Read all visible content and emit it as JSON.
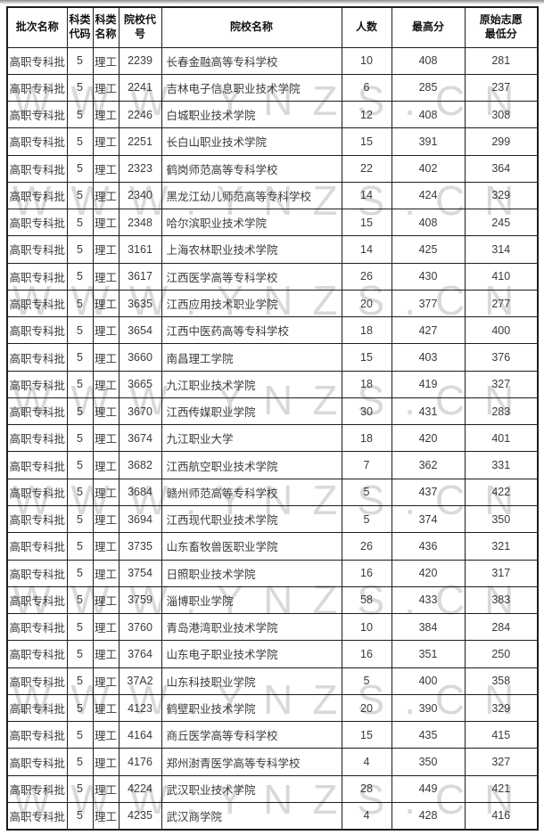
{
  "watermark": {
    "text": "WWW.YNZS.CN",
    "color": "#d9d9d9",
    "repeats": 8
  },
  "table": {
    "headers": [
      "批次名称",
      "科类\n代码",
      "科类\n名称",
      "院校代号",
      "院校名称",
      "人数",
      "最高分",
      "原始志愿\n最低分"
    ],
    "column_keys": [
      "batch",
      "subject-code",
      "subject-name",
      "college-code",
      "college-name",
      "count",
      "max-score",
      "min-score"
    ],
    "rows": [
      [
        "高职专科批",
        "5",
        "理工",
        "2239",
        "长春金融高等专科学校",
        "10",
        "408",
        "281"
      ],
      [
        "高职专科批",
        "5",
        "理工",
        "2241",
        "吉林电子信息职业技术学院",
        "6",
        "285",
        "237"
      ],
      [
        "高职专科批",
        "5",
        "理工",
        "2246",
        "白城职业技术学院",
        "12",
        "408",
        "308"
      ],
      [
        "高职专科批",
        "5",
        "理工",
        "2251",
        "长白山职业技术学院",
        "15",
        "391",
        "299"
      ],
      [
        "高职专科批",
        "5",
        "理工",
        "2323",
        "鹤岗师范高等专科学校",
        "22",
        "402",
        "364"
      ],
      [
        "高职专科批",
        "5",
        "理工",
        "2340",
        "黑龙江幼儿师范高等专科学校",
        "14",
        "424",
        "329"
      ],
      [
        "高职专科批",
        "5",
        "理工",
        "2348",
        "哈尔滨职业技术学院",
        "15",
        "408",
        "245"
      ],
      [
        "高职专科批",
        "5",
        "理工",
        "3161",
        "上海农林职业技术学院",
        "14",
        "425",
        "314"
      ],
      [
        "高职专科批",
        "5",
        "理工",
        "3617",
        "江西医学高等专科学校",
        "26",
        "430",
        "410"
      ],
      [
        "高职专科批",
        "5",
        "理工",
        "3635",
        "江西应用技术职业学院",
        "20",
        "377",
        "277"
      ],
      [
        "高职专科批",
        "5",
        "理工",
        "3654",
        "江西中医药高等专科学校",
        "18",
        "427",
        "400"
      ],
      [
        "高职专科批",
        "5",
        "理工",
        "3660",
        "南昌理工学院",
        "15",
        "403",
        "376"
      ],
      [
        "高职专科批",
        "5",
        "理工",
        "3665",
        "九江职业技术学院",
        "18",
        "419",
        "327"
      ],
      [
        "高职专科批",
        "5",
        "理工",
        "3670",
        "江西传媒职业学院",
        "30",
        "431",
        "283"
      ],
      [
        "高职专科批",
        "5",
        "理工",
        "3674",
        "九江职业大学",
        "18",
        "420",
        "401"
      ],
      [
        "高职专科批",
        "5",
        "理工",
        "3682",
        "江西航空职业技术学院",
        "7",
        "362",
        "331"
      ],
      [
        "高职专科批",
        "5",
        "理工",
        "3684",
        "赣州师范高等专科学校",
        "5",
        "437",
        "422"
      ],
      [
        "高职专科批",
        "5",
        "理工",
        "3694",
        "江西现代职业技术学院",
        "5",
        "374",
        "350"
      ],
      [
        "高职专科批",
        "5",
        "理工",
        "3735",
        "山东畜牧兽医职业学院",
        "26",
        "436",
        "321"
      ],
      [
        "高职专科批",
        "5",
        "理工",
        "3754",
        "日照职业技术学院",
        "16",
        "420",
        "317"
      ],
      [
        "高职专科批",
        "5",
        "理工",
        "3759",
        "淄博职业学院",
        "58",
        "433",
        "383"
      ],
      [
        "高职专科批",
        "5",
        "理工",
        "3760",
        "青岛港湾职业技术学院",
        "10",
        "384",
        "284"
      ],
      [
        "高职专科批",
        "5",
        "理工",
        "3764",
        "山东电子职业技术学院",
        "16",
        "351",
        "250"
      ],
      [
        "高职专科批",
        "5",
        "理工",
        "37A2",
        "山东科技职业学院",
        "5",
        "400",
        "358"
      ],
      [
        "高职专科批",
        "5",
        "理工",
        "4123",
        "鹤壁职业技术学院",
        "20",
        "390",
        "329"
      ],
      [
        "高职专科批",
        "5",
        "理工",
        "4164",
        "商丘医学高等专科学校",
        "15",
        "435",
        "415"
      ],
      [
        "高职专科批",
        "5",
        "理工",
        "4176",
        "郑州澍青医学高等专科学校",
        "4",
        "350",
        "327"
      ],
      [
        "高职专科批",
        "5",
        "理工",
        "4224",
        "武汉职业技术学院",
        "28",
        "449",
        "421"
      ],
      [
        "高职专科批",
        "5",
        "理工",
        "4235",
        "武汉商学院",
        "4",
        "428",
        "416"
      ]
    ]
  }
}
